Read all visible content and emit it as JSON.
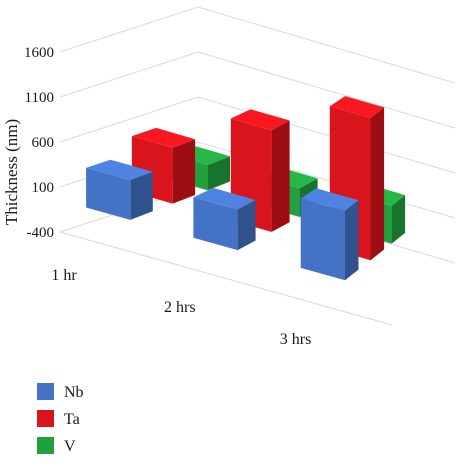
{
  "chart_data": {
    "type": "bar",
    "variant": "3d-clustered-column",
    "categories": [
      "1 hr",
      "2 hrs",
      "3 hrs"
    ],
    "series": [
      {
        "name": "Nb",
        "color": "#4472c4",
        "values": [
          310,
          320,
          640
        ]
      },
      {
        "name": "Ta",
        "color": "#d9141c",
        "values": [
          490,
          1000,
          1450
        ]
      },
      {
        "name": "V",
        "color": "#21a03d",
        "values": [
          150,
          190,
          290
        ]
      }
    ],
    "ylabel": "Thickness (nm)",
    "ylim": [
      -400,
      1600
    ],
    "yticks": [
      -400,
      100,
      600,
      1100,
      1600
    ],
    "ytick_labels": [
      "-400",
      "100",
      "600",
      "1100",
      "1600"
    ],
    "grid": true,
    "legend_position": "bottom-left"
  }
}
